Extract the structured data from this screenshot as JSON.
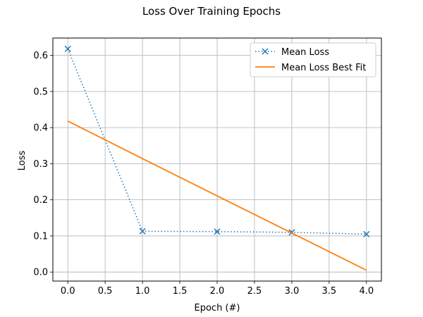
{
  "chart_data": {
    "type": "line",
    "title": "Loss Over Training Epochs",
    "xlabel": "Epoch (#)",
    "ylabel": "Loss",
    "xlim": [
      -0.2,
      4.2
    ],
    "ylim": [
      -0.025,
      0.648
    ],
    "xticks": [
      0.0,
      0.5,
      1.0,
      1.5,
      2.0,
      2.5,
      3.0,
      3.5,
      4.0
    ],
    "xtick_labels": [
      "0.0",
      "0.5",
      "1.0",
      "1.5",
      "2.0",
      "2.5",
      "3.0",
      "3.5",
      "4.0"
    ],
    "yticks": [
      0.0,
      0.1,
      0.2,
      0.3,
      0.4,
      0.5,
      0.6
    ],
    "ytick_labels": [
      "0.0",
      "0.1",
      "0.2",
      "0.3",
      "0.4",
      "0.5",
      "0.6"
    ],
    "grid": true,
    "legend_position": "top-right",
    "series": [
      {
        "name": "Mean Loss",
        "style": "dotted-with-x-markers",
        "color": "#1f77b4",
        "x": [
          0,
          1,
          2,
          3,
          4
        ],
        "y": [
          0.618,
          0.113,
          0.112,
          0.11,
          0.105
        ]
      },
      {
        "name": "Mean Loss Best Fit",
        "style": "solid",
        "color": "#ff7f0e",
        "x": [
          0,
          1,
          2,
          3,
          4
        ],
        "y": [
          0.418,
          0.314,
          0.211,
          0.108,
          0.005
        ]
      }
    ]
  }
}
